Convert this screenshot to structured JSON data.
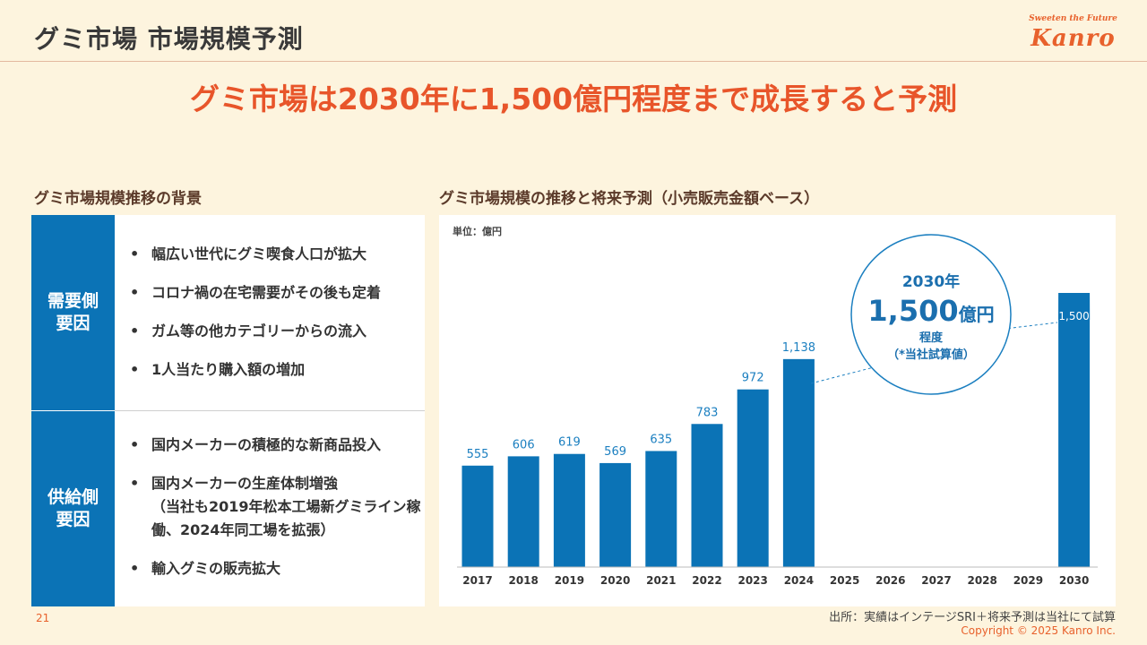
{
  "page": {
    "title": "グミ市場 市場規模予測",
    "number": "21"
  },
  "logo": {
    "tagline": "Sweeten the Future",
    "name": "Kanro"
  },
  "headline": "グミ市場は2030年に1,500億円程度まで成長すると予測",
  "left_section": {
    "title": "グミ市場規模推移の背景",
    "demand": {
      "label": "需要側\n要因",
      "items": [
        "幅広い世代にグミ喫食人口が拡大",
        "コロナ禍の在宅需要がその後も定着",
        "ガム等の他カテゴリーからの流入",
        "1人当たり購入額の増加"
      ]
    },
    "supply": {
      "label": "供給側\n要因",
      "items": [
        "国内メーカーの積極的な新商品投入",
        "国内メーカーの生産体制増強\n（当社も2019年松本工場新グミライン稼働、2024年同工場を拡張）",
        "輸入グミの販売拡大"
      ]
    }
  },
  "right_section": {
    "title": "グミ市場規模の推移と将来予測（小売販売金額ベース）"
  },
  "chart_data": {
    "type": "bar",
    "unit_label": "単位：億円",
    "categories": [
      "2017",
      "2018",
      "2019",
      "2020",
      "2021",
      "2022",
      "2023",
      "2024",
      "2025",
      "2026",
      "2027",
      "2028",
      "2029",
      "2030"
    ],
    "values": [
      555,
      606,
      619,
      569,
      635,
      783,
      972,
      1138,
      null,
      null,
      null,
      null,
      null,
      1500
    ],
    "value_labels": [
      "555",
      "606",
      "619",
      "569",
      "635",
      "783",
      "972",
      "1,138",
      "",
      "",
      "",
      "",
      "",
      "1,500"
    ],
    "ylim": [
      0,
      1500
    ],
    "bar_color": "#0b73b6",
    "label_color": "#1b7fc0",
    "grid": false,
    "callout": {
      "line1": "2030年",
      "value": "1,500",
      "unit": "億円",
      "line3": "程度",
      "line4": "（*当社試算値）"
    }
  },
  "footer": {
    "source": "出所：実績はインテージSRI＋将来予測は当社にて試算",
    "copyright": "Copyright © 2025  Kanro Inc."
  }
}
